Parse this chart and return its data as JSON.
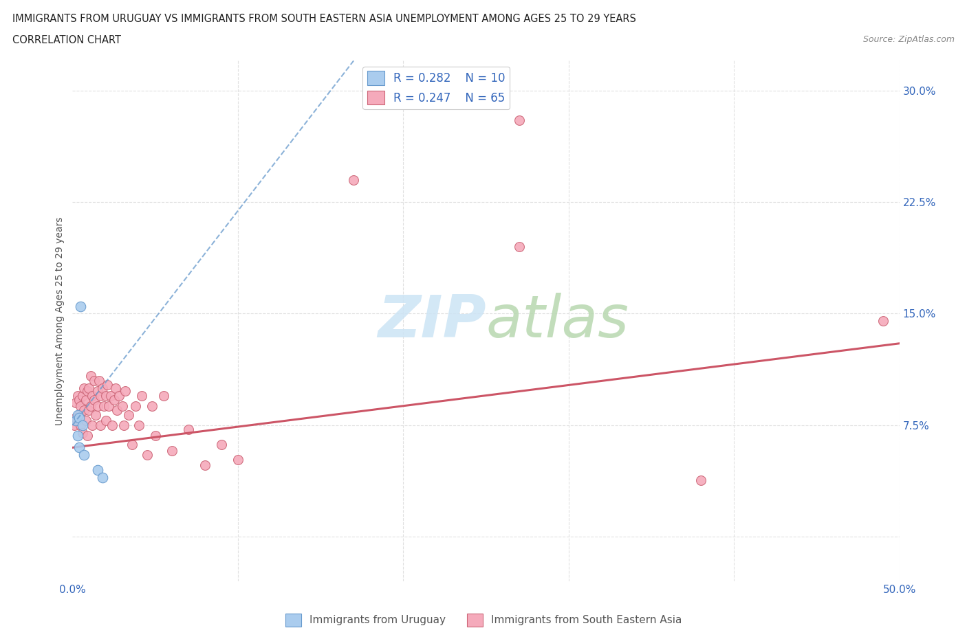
{
  "title_line1": "IMMIGRANTS FROM URUGUAY VS IMMIGRANTS FROM SOUTH EASTERN ASIA UNEMPLOYMENT AMONG AGES 25 TO 29 YEARS",
  "title_line2": "CORRELATION CHART",
  "source_text": "Source: ZipAtlas.com",
  "ylabel": "Unemployment Among Ages 25 to 29 years",
  "xlim": [
    0.0,
    0.5
  ],
  "ylim": [
    -0.03,
    0.32
  ],
  "xticks": [
    0.0,
    0.1,
    0.2,
    0.3,
    0.4,
    0.5
  ],
  "yticks": [
    0.0,
    0.075,
    0.15,
    0.225,
    0.3
  ],
  "background_color": "#ffffff",
  "grid_color": "#e0e0e0",
  "watermark_zip": "ZIP",
  "watermark_atlas": "atlas",
  "watermark_color_zip": "#cde4f5",
  "watermark_color_atlas": "#c8d8c0",
  "uruguay_color": "#aaccee",
  "uruguay_edge_color": "#6699cc",
  "uruguay_line_color": "#6699cc",
  "uruguay_R": 0.282,
  "uruguay_N": 10,
  "uruguay_x": [
    0.005,
    0.002,
    0.003,
    0.004,
    0.006,
    0.003,
    0.004,
    0.007,
    0.015,
    0.018
  ],
  "uruguay_y": [
    0.155,
    0.078,
    0.082,
    0.08,
    0.075,
    0.068,
    0.06,
    0.055,
    0.045,
    0.04
  ],
  "sea_color": "#f5aabb",
  "sea_edge_color": "#cc6677",
  "sea_line_color": "#cc5566",
  "sea_R": 0.247,
  "sea_N": 65,
  "sea_x": [
    0.001,
    0.002,
    0.002,
    0.003,
    0.003,
    0.004,
    0.004,
    0.005,
    0.005,
    0.006,
    0.006,
    0.007,
    0.007,
    0.008,
    0.008,
    0.009,
    0.009,
    0.01,
    0.01,
    0.011,
    0.011,
    0.012,
    0.012,
    0.013,
    0.013,
    0.014,
    0.015,
    0.015,
    0.016,
    0.017,
    0.017,
    0.018,
    0.019,
    0.02,
    0.02,
    0.021,
    0.022,
    0.023,
    0.024,
    0.025,
    0.026,
    0.027,
    0.028,
    0.03,
    0.031,
    0.032,
    0.034,
    0.036,
    0.038,
    0.04,
    0.042,
    0.045,
    0.048,
    0.05,
    0.055,
    0.06,
    0.07,
    0.08,
    0.09,
    0.1,
    0.17,
    0.27,
    0.27,
    0.38,
    0.49
  ],
  "sea_y": [
    0.075,
    0.08,
    0.09,
    0.078,
    0.095,
    0.082,
    0.092,
    0.075,
    0.088,
    0.07,
    0.095,
    0.085,
    0.1,
    0.078,
    0.092,
    0.068,
    0.098,
    0.085,
    0.1,
    0.088,
    0.108,
    0.095,
    0.075,
    0.092,
    0.105,
    0.082,
    0.098,
    0.088,
    0.105,
    0.095,
    0.075,
    0.1,
    0.088,
    0.095,
    0.078,
    0.102,
    0.088,
    0.095,
    0.075,
    0.092,
    0.1,
    0.085,
    0.095,
    0.088,
    0.075,
    0.098,
    0.082,
    0.062,
    0.088,
    0.075,
    0.095,
    0.055,
    0.088,
    0.068,
    0.095,
    0.058,
    0.072,
    0.048,
    0.062,
    0.052,
    0.24,
    0.195,
    0.28,
    0.038,
    0.145
  ],
  "sea_line_x0": 0.0,
  "sea_line_y0": 0.06,
  "sea_line_x1": 0.5,
  "sea_line_y1": 0.13,
  "uru_line_x0": 0.0,
  "uru_line_y0": 0.075,
  "uru_line_x1": 0.17,
  "uru_line_y1": 0.32
}
